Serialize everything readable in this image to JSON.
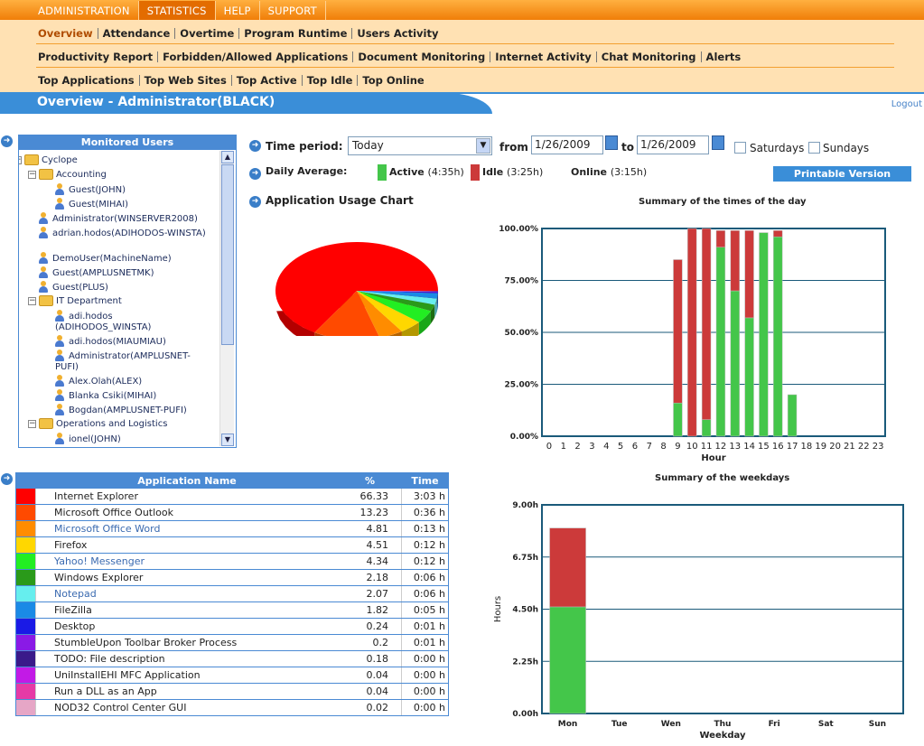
{
  "top_menu": [
    "ADMINISTRATION",
    "STATISTICS",
    "HELP",
    "SUPPORT"
  ],
  "active_top_menu": "STATISTICS",
  "sub_menu_rows": [
    [
      "Overview",
      "Attendance",
      "Overtime",
      "Program Runtime",
      "Users Activity"
    ],
    [
      "Productivity Report",
      "Forbidden/Allowed Applications",
      "Document Monitoring",
      "Internet Activity",
      "Chat Monitoring",
      "Alerts"
    ],
    [
      "Top Applications",
      "Top Web Sites",
      "Top Active",
      "Top Idle",
      "Top Online"
    ]
  ],
  "current_sub_menu": "Overview",
  "page_title": "Overview - Administrator(BLACK)",
  "logout": "Logout",
  "monitored_users": {
    "header": "Monitored Users",
    "tree": [
      {
        "label": "Cyclope",
        "type": "group"
      },
      {
        "label": "Accounting",
        "type": "group"
      },
      {
        "label": "Guest(JOHN)",
        "type": "user"
      },
      {
        "label": "Guest(MIHAI)",
        "type": "user"
      },
      {
        "label": "Administrator(WINSERVER2008)",
        "type": "user"
      },
      {
        "label": "adrian.hodos(ADIHODOS-WINSTA)",
        "type": "user"
      },
      {
        "label": "DemoUser(MachineName)",
        "type": "user"
      },
      {
        "label": "Guest(AMPLUSNETMK)",
        "type": "user"
      },
      {
        "label": "Guest(PLUS)",
        "type": "user"
      },
      {
        "label": "IT Department",
        "type": "group"
      },
      {
        "label": "adi.hodos (ADIHODOS_WINSTA)",
        "type": "user"
      },
      {
        "label": "adi.hodos(MIAUMIAU)",
        "type": "user"
      },
      {
        "label": "Administrator(AMPLUSNET-PUFI)",
        "type": "user"
      },
      {
        "label": "Alex.Olah(ALEX)",
        "type": "user"
      },
      {
        "label": "Blanka Csiki(MIHAI)",
        "type": "user"
      },
      {
        "label": "Bogdan(AMPLUSNET-PUFI)",
        "type": "user"
      },
      {
        "label": "Operations and Logistics",
        "type": "group"
      },
      {
        "label": "ionel(JOHN)",
        "type": "user"
      }
    ]
  },
  "controls": {
    "time_period_label": "Time period:",
    "time_period_value": "Today",
    "from_label": "from",
    "from_date": "1/26/2009",
    "to_label": "to",
    "to_date": "1/26/2009",
    "saturdays_label": "Saturdays",
    "sundays_label": "Sundays",
    "printable_label": "Printable Version"
  },
  "daily_average": {
    "label": "Daily Average:",
    "active_label": "Active",
    "active_value": "(4:35h)",
    "idle_label": "Idle",
    "idle_value": "(3:25h)",
    "online_label": "Online",
    "online_value": "(3:15h)",
    "active_color": "#44c64a",
    "idle_color": "#cc3a3a"
  },
  "app_usage_title": "Application Usage Chart",
  "app_table": {
    "headers": [
      "Application Name",
      "%",
      "Time"
    ],
    "rows": [
      {
        "name": "Internet Explorer",
        "pct": "66.33",
        "time": "3:03 h",
        "color": "#ff0000",
        "link": false
      },
      {
        "name": "Microsoft Office Outlook",
        "pct": "13.23",
        "time": "0:36 h",
        "color": "#ff4a00",
        "link": false
      },
      {
        "name": "Microsoft Office Word",
        "pct": "4.81",
        "time": "0:13 h",
        "color": "#ff8c00",
        "link": true
      },
      {
        "name": "Firefox",
        "pct": "4.51",
        "time": "0:12 h",
        "color": "#ffd700",
        "link": false
      },
      {
        "name": "Yahoo! Messenger",
        "pct": "4.34",
        "time": "0:12 h",
        "color": "#22ee22",
        "link": true
      },
      {
        "name": "Windows Explorer",
        "pct": "2.18",
        "time": "0:06 h",
        "color": "#2a9a1a",
        "link": false
      },
      {
        "name": "Notepad",
        "pct": "2.07",
        "time": "0:06 h",
        "color": "#66eeee",
        "link": true
      },
      {
        "name": "FileZilla",
        "pct": "1.82",
        "time": "0:05 h",
        "color": "#1a8ae6",
        "link": false
      },
      {
        "name": "Desktop",
        "pct": "0.24",
        "time": "0:01 h",
        "color": "#1a1ae6",
        "link": false
      },
      {
        "name": "StumbleUpon Toolbar Broker Process",
        "pct": "0.2",
        "time": "0:01 h",
        "color": "#8a1ae6",
        "link": false
      },
      {
        "name": "TODO: File description",
        "pct": "0.18",
        "time": "0:00 h",
        "color": "#3a1a8a",
        "link": false
      },
      {
        "name": "UniInstallEHI MFC Application",
        "pct": "0.04",
        "time": "0:00 h",
        "color": "#c21ae6",
        "link": false
      },
      {
        "name": "Run a DLL as an App",
        "pct": "0.04",
        "time": "0:00 h",
        "color": "#e63aa6",
        "link": false
      },
      {
        "name": "NOD32 Control Center GUI",
        "pct": "0.02",
        "time": "0:00 h",
        "color": "#e6a6c6",
        "link": false
      }
    ]
  },
  "chart_data": [
    {
      "type": "pie",
      "title": "Application Usage Chart",
      "categories": [
        "Internet Explorer",
        "Microsoft Office Outlook",
        "Microsoft Office Word",
        "Firefox",
        "Yahoo! Messenger",
        "Windows Explorer",
        "Notepad",
        "FileZilla",
        "Desktop",
        "StumbleUpon Toolbar Broker Process",
        "TODO: File description",
        "UniInstallEHI MFC Application",
        "Run a DLL as an App",
        "NOD32 Control Center GUI"
      ],
      "values": [
        66.33,
        13.23,
        4.81,
        4.51,
        4.34,
        2.18,
        2.07,
        1.82,
        0.24,
        0.2,
        0.18,
        0.04,
        0.04,
        0.02
      ],
      "colors": [
        "#ff0000",
        "#ff4a00",
        "#ff8c00",
        "#ffd700",
        "#22ee22",
        "#2a9a1a",
        "#66eeee",
        "#1a8ae6",
        "#1a1ae6",
        "#8a1ae6",
        "#3a1a8a",
        "#c21ae6",
        "#e63aa6",
        "#e6a6c6"
      ]
    },
    {
      "type": "bar",
      "stacked": true,
      "title": "Summary of the times of the day",
      "xlabel": "Hour",
      "ylabel": "",
      "categories": [
        "0",
        "1",
        "2",
        "3",
        "4",
        "5",
        "6",
        "7",
        "8",
        "9",
        "10",
        "11",
        "12",
        "13",
        "14",
        "15",
        "16",
        "17",
        "18",
        "19",
        "20",
        "21",
        "22",
        "23"
      ],
      "series": [
        {
          "name": "Active",
          "color": "#44c64a",
          "values": [
            0,
            0,
            0,
            0,
            0,
            0,
            0,
            0,
            0,
            16,
            0,
            8,
            91,
            70,
            57,
            98,
            96,
            20,
            0,
            0,
            0,
            0,
            0,
            0
          ]
        },
        {
          "name": "Idle",
          "color": "#cc3a3a",
          "values": [
            0,
            0,
            0,
            0,
            0,
            0,
            0,
            0,
            0,
            69,
            100,
            92,
            8,
            29,
            42,
            0,
            3,
            0,
            0,
            0,
            0,
            0,
            0,
            0
          ]
        }
      ],
      "yticks": [
        "0.00%",
        "25.00%",
        "50.00%",
        "75.00%",
        "100.00%"
      ],
      "ylim": [
        0,
        100
      ]
    },
    {
      "type": "bar",
      "stacked": true,
      "title": "Summary of the weekdays",
      "xlabel": "Weekday",
      "ylabel": "Hours",
      "categories": [
        "Mon",
        "Tue",
        "Wen",
        "Thu",
        "Fri",
        "Sat",
        "Sun"
      ],
      "series": [
        {
          "name": "Active",
          "color": "#44c64a",
          "values": [
            4.6,
            0,
            0,
            0,
            0,
            0,
            0
          ]
        },
        {
          "name": "Idle",
          "color": "#cc3a3a",
          "values": [
            3.4,
            0,
            0,
            0,
            0,
            0,
            0
          ]
        }
      ],
      "yticks": [
        "0.00h",
        "2.25h",
        "4.50h",
        "6.75h",
        "9.00h"
      ],
      "ylim": [
        0,
        9
      ]
    }
  ]
}
